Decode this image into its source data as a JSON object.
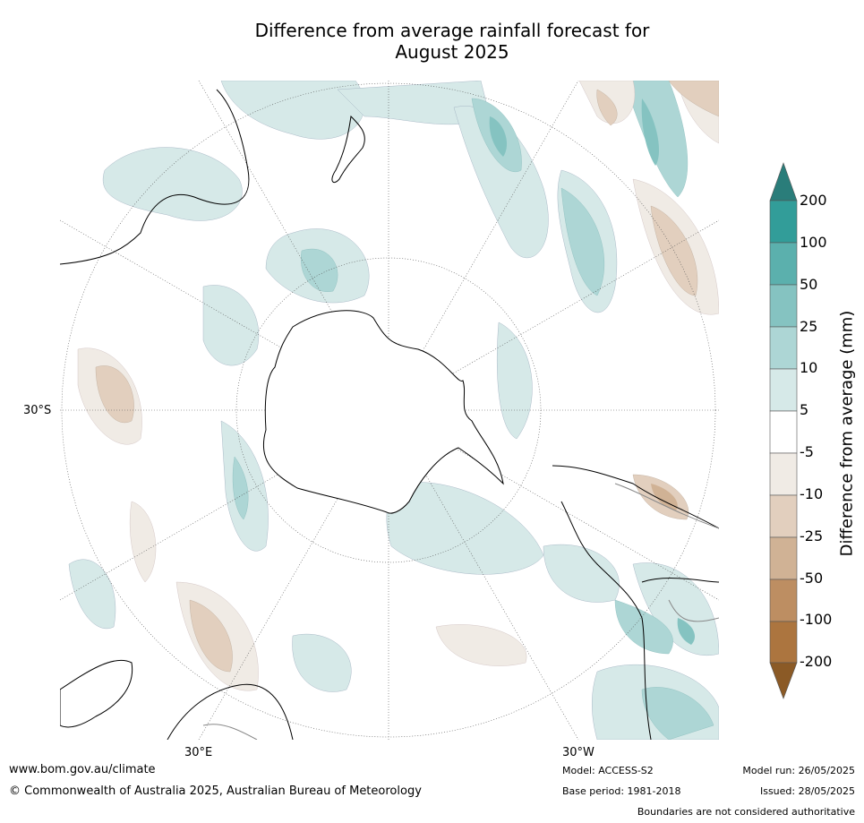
{
  "title": "Difference from average rainfall forecast for\nAugust 2025",
  "axes": {
    "lat_label": "30°S",
    "lon_east_label": "30°E",
    "lon_west_label": "30°W"
  },
  "colorbar": {
    "label": "Difference from average (mm)",
    "ticks": [
      "200",
      "100",
      "50",
      "25",
      "10",
      "5",
      "-5",
      "-10",
      "-25",
      "-50",
      "-100",
      "-200"
    ],
    "colors": {
      "over": "#2a7d7a",
      "c100_200": "#329d99",
      "c50_100": "#5bb0ad",
      "c25_50": "#85c3c1",
      "c10_25": "#add6d5",
      "c5_10": "#d6e9e8",
      "neutral": "#ffffff",
      "m5_m10": "#f0ebe5",
      "m10_m25": "#e2cfbe",
      "m25_m50": "#d0b295",
      "m50_m100": "#bd8e62",
      "m100_m200": "#ac753f",
      "under": "#8b5a26"
    }
  },
  "footer": {
    "website": "www.bom.gov.au/climate",
    "copyright": "© Commonwealth of Australia 2025, Australian Bureau of Meteorology",
    "model": "Model: ACCESS-S2",
    "base_period": "Base period: 1981-2018",
    "model_run": "Model run: 26/05/2025",
    "issued": "Issued: 28/05/2025",
    "disclaimer": "Boundaries are not considered authoritative"
  }
}
